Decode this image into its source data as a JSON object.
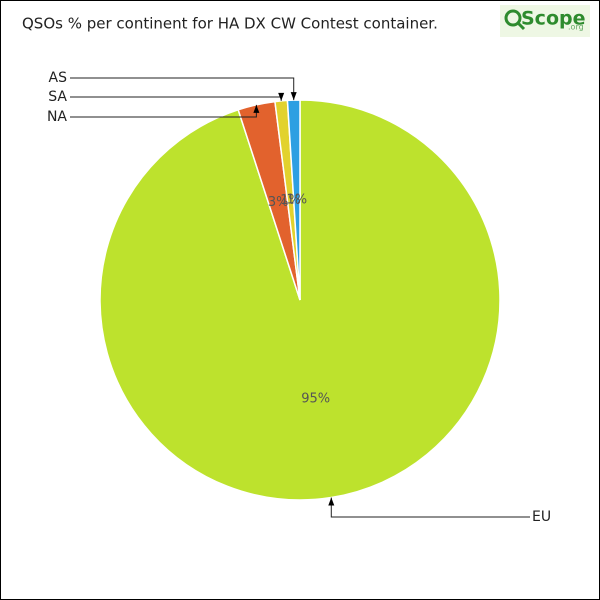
{
  "chart_data": {
    "type": "pie",
    "title": "QSOs % per continent for HA DX CW Contest container.",
    "categories": [
      "EU",
      "NA",
      "SA",
      "AS"
    ],
    "values": [
      95,
      3,
      1,
      1
    ],
    "value_labels": [
      "95%",
      "3%",
      "1%",
      "1%"
    ],
    "colors": [
      "#bde22d",
      "#e2622d",
      "#e2d22d",
      "#2d9fe2"
    ]
  },
  "logo": {
    "text": "Scope",
    "suffix": ".org"
  }
}
